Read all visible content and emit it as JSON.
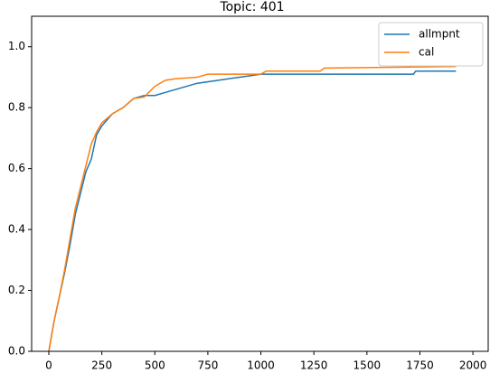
{
  "chart_data": {
    "type": "line",
    "title": "Topic: 401",
    "xlim": [
      -81,
      2072
    ],
    "ylim": [
      0,
      1.1
    ],
    "xticks": [
      0,
      250,
      500,
      750,
      1000,
      1250,
      1500,
      1750,
      2000
    ],
    "yticks": [
      {
        "value": 0,
        "label": "0.0"
      },
      0.2,
      0.4,
      0.6,
      0.8,
      {
        "value": 1,
        "label": "1.0"
      }
    ],
    "legend": "upper right",
    "series": [
      {
        "name": "allmpnt",
        "color": "#1f77b4",
        "x": [
          0,
          25,
          50,
          75,
          100,
          125,
          150,
          175,
          200,
          225,
          250,
          300,
          350,
          400,
          450,
          500,
          550,
          600,
          650,
          700,
          800,
          900,
          1000,
          1250,
          1720,
          1730,
          1920
        ],
        "values": [
          0,
          0.1,
          0.18,
          0.26,
          0.35,
          0.45,
          0.52,
          0.59,
          0.63,
          0.71,
          0.74,
          0.78,
          0.8,
          0.83,
          0.84,
          0.84,
          0.85,
          0.86,
          0.87,
          0.88,
          0.89,
          0.9,
          0.91,
          0.91,
          0.91,
          0.92,
          0.92
        ]
      },
      {
        "name": "cal",
        "color": "#ff7f0e",
        "x": [
          0,
          25,
          50,
          75,
          100,
          125,
          150,
          175,
          200,
          225,
          250,
          300,
          350,
          400,
          450,
          500,
          550,
          600,
          700,
          750,
          1000,
          1025,
          1280,
          1300,
          1920
        ],
        "values": [
          0,
          0.1,
          0.18,
          0.27,
          0.37,
          0.47,
          0.54,
          0.61,
          0.68,
          0.72,
          0.75,
          0.78,
          0.8,
          0.83,
          0.835,
          0.87,
          0.89,
          0.895,
          0.9,
          0.91,
          0.91,
          0.92,
          0.92,
          0.93,
          0.935
        ]
      }
    ]
  }
}
